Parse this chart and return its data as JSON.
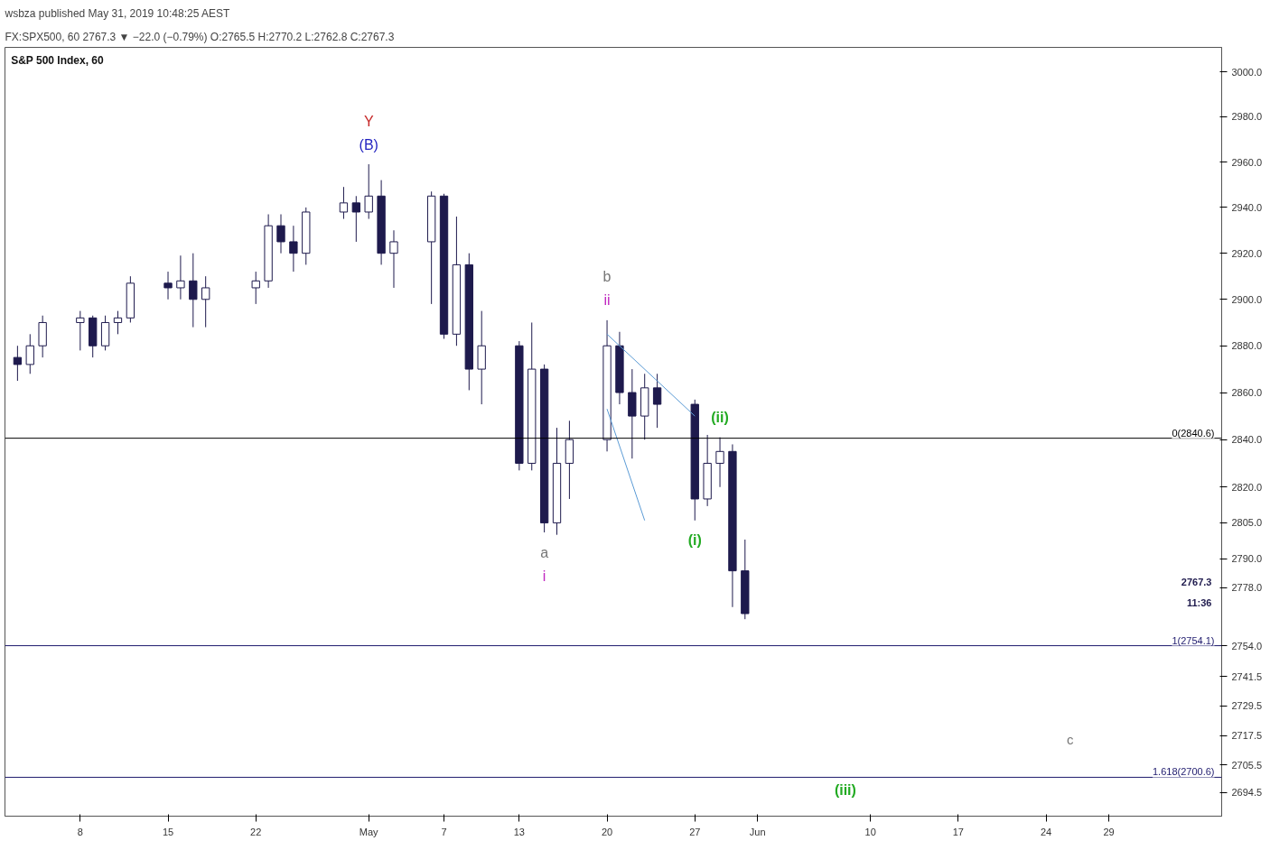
{
  "chart_data": {
    "type": "candlestick",
    "title": "wsbza published May 31, 2019 10:48:25 AEST",
    "subtitle": "FX:SPX500, 60  2767.3 ▼ −22.0 (−0.79%) O:2765.5 H:2770.2 L:2762.8 C:2767.3",
    "log": true,
    "xlim": [
      "2019-04-02",
      "2019-07-08"
    ],
    "xticks": [
      {
        "value": "2019-04-08",
        "label": "8"
      },
      {
        "value": "2019-04-15",
        "label": "15"
      },
      {
        "value": "2019-04-22",
        "label": "22"
      },
      {
        "value": "2019-05-01",
        "label": "May"
      },
      {
        "value": "2019-05-07",
        "label": "7"
      },
      {
        "value": "2019-05-13",
        "label": "13"
      },
      {
        "value": "2019-05-20",
        "label": "20"
      },
      {
        "value": "2019-05-27",
        "label": "27"
      },
      {
        "value": "2019-06-01",
        "label": "Jun"
      },
      {
        "value": "2019-06-10",
        "label": "10"
      },
      {
        "value": "2019-06-17",
        "label": "17"
      },
      {
        "value": "2019-06-24",
        "label": "24"
      },
      {
        "value": "2019-06-29",
        "label": "29"
      }
    ],
    "ylim": [
      2685,
      3011
    ],
    "yticks": [
      {
        "value": 3000,
        "label": "3000.0"
      },
      {
        "value": 2980,
        "label": "2980.0"
      },
      {
        "value": 2960,
        "label": "2960.0"
      },
      {
        "value": 2940,
        "label": "2940.0"
      },
      {
        "value": 2920,
        "label": "2920.0"
      },
      {
        "value": 2900,
        "label": "2900.0"
      },
      {
        "value": 2880,
        "label": "2880.0"
      },
      {
        "value": 2860,
        "label": "2860.0"
      },
      {
        "value": 2840,
        "label": "2840.0"
      },
      {
        "value": 2820,
        "label": "2820.0"
      },
      {
        "value": 2805,
        "label": "2805.0"
      },
      {
        "value": 2790,
        "label": "2790.0"
      },
      {
        "value": 2778,
        "label": "2778.0"
      },
      {
        "value": 2754,
        "label": "2754.0"
      },
      2741.5,
      2729.5,
      2717.5,
      2705.5,
      2694.5
    ],
    "series": [
      {
        "color": "#1e1a4d",
        "x": [
          "2019-04-03",
          "2019-04-04",
          "2019-04-05",
          "2019-04-08",
          "2019-04-09",
          "2019-04-10",
          "2019-04-11",
          "2019-04-12",
          "2019-04-15",
          "2019-04-16",
          "2019-04-17",
          "2019-04-18",
          "2019-04-22",
          "2019-04-23",
          "2019-04-24",
          "2019-04-25",
          "2019-04-26",
          "2019-04-29",
          "2019-04-30",
          "2019-05-01",
          "2019-05-02",
          "2019-05-03",
          "2019-05-06",
          "2019-05-07",
          "2019-05-08",
          "2019-05-09",
          "2019-05-10",
          "2019-05-13",
          "2019-05-14",
          "2019-05-15",
          "2019-05-16",
          "2019-05-17",
          "2019-05-20",
          "2019-05-21",
          "2019-05-22",
          "2019-05-23",
          "2019-05-24",
          "2019-05-27",
          "2019-05-28",
          "2019-05-29",
          "2019-05-30",
          "2019-05-31"
        ],
        "ohlc": [
          [
            2875,
            2880,
            2865,
            2872
          ],
          [
            2872,
            2885,
            2868,
            2880
          ],
          [
            2880,
            2893,
            2875,
            2890
          ],
          [
            2890,
            2895,
            2878,
            2892
          ],
          [
            2892,
            2893,
            2875,
            2880
          ],
          [
            2880,
            2893,
            2878,
            2890
          ],
          [
            2890,
            2895,
            2885,
            2892
          ],
          [
            2892,
            2910,
            2890,
            2907
          ],
          [
            2907,
            2912,
            2900,
            2905
          ],
          [
            2905,
            2919,
            2900,
            2908
          ],
          [
            2908,
            2920,
            2888,
            2900
          ],
          [
            2900,
            2910,
            2888,
            2905
          ],
          [
            2905,
            2912,
            2898,
            2908
          ],
          [
            2908,
            2937,
            2905,
            2932
          ],
          [
            2932,
            2937,
            2920,
            2925
          ],
          [
            2925,
            2932,
            2912,
            2920
          ],
          [
            2920,
            2940,
            2915,
            2938
          ],
          [
            2938,
            2949,
            2935,
            2942
          ],
          [
            2942,
            2945,
            2925,
            2938
          ],
          [
            2938,
            2959,
            2935,
            2945
          ],
          [
            2945,
            2952,
            2915,
            2920
          ],
          [
            2920,
            2930,
            2905,
            2925
          ],
          [
            2925,
            2947,
            2898,
            2945
          ],
          [
            2945,
            2946,
            2883,
            2885
          ],
          [
            2885,
            2936,
            2880,
            2915
          ],
          [
            2915,
            2920,
            2861,
            2870
          ],
          [
            2870,
            2895,
            2855,
            2880
          ],
          [
            2880,
            2882,
            2827,
            2830
          ],
          [
            2830,
            2890,
            2827,
            2870
          ],
          [
            2870,
            2872,
            2801,
            2805
          ],
          [
            2805,
            2845,
            2800,
            2830
          ],
          [
            2830,
            2848,
            2815,
            2840
          ],
          [
            2840,
            2891,
            2835,
            2880
          ],
          [
            2880,
            2886,
            2855,
            2860
          ],
          [
            2860,
            2870,
            2832,
            2850
          ],
          [
            2850,
            2868,
            2840,
            2862
          ],
          [
            2862,
            2868,
            2845,
            2855
          ],
          [
            2855,
            2857,
            2806,
            2815
          ],
          [
            2815,
            2842,
            2812,
            2830
          ],
          [
            2830,
            2841,
            2820,
            2835
          ],
          [
            2835,
            2838,
            2770,
            2785
          ],
          [
            2785,
            2798,
            2765,
            2767.3
          ]
        ]
      },
      {
        "type": "line",
        "color": "#5b9bd5",
        "x": [
          "2019-05-20",
          "2019-05-27"
        ],
        "values": [
          2885,
          2850
        ]
      },
      {
        "type": "line",
        "color": "#5b9bd5",
        "x": [
          "2019-05-20",
          "2019-05-23"
        ],
        "values": [
          2853,
          2806
        ]
      }
    ],
    "ref_lines": [
      {
        "axis": "y",
        "value": 2840.6,
        "label": "0(2840.6)",
        "color": "#000000"
      },
      {
        "axis": "y",
        "value": 2754.1,
        "label": "1(2754.1)",
        "color": "#1e1a6d"
      },
      {
        "axis": "y",
        "value": 2700.6,
        "label": "1.618(2700.6)",
        "color": "#1e1a6d"
      }
    ],
    "annotations": [
      "S&P 500 Index, 60",
      "c",
      "11:36",
      "2767.3",
      {
        "text": "(B)",
        "x": "2019-05-01",
        "y": 2959
      },
      {
        "text": "Y",
        "x": "2019-05-01",
        "y": 2959
      },
      {
        "text": "ii",
        "x": "2019-05-20",
        "y": 2891
      },
      {
        "text": "b",
        "x": "2019-05-20",
        "y": 2891
      },
      {
        "text": "a",
        "x": "2019-05-15",
        "y": 2801
      },
      {
        "text": "i",
        "x": "2019-05-15",
        "y": 2801
      },
      {
        "text": "(i)",
        "x": "2019-05-27",
        "y": 2806
      },
      {
        "text": "(ii)",
        "x": "2019-05-29",
        "y": 2841
      },
      {
        "text": "(iii)",
        "x": "2019-06-08",
        "y": 2700.6
      }
    ]
  }
}
